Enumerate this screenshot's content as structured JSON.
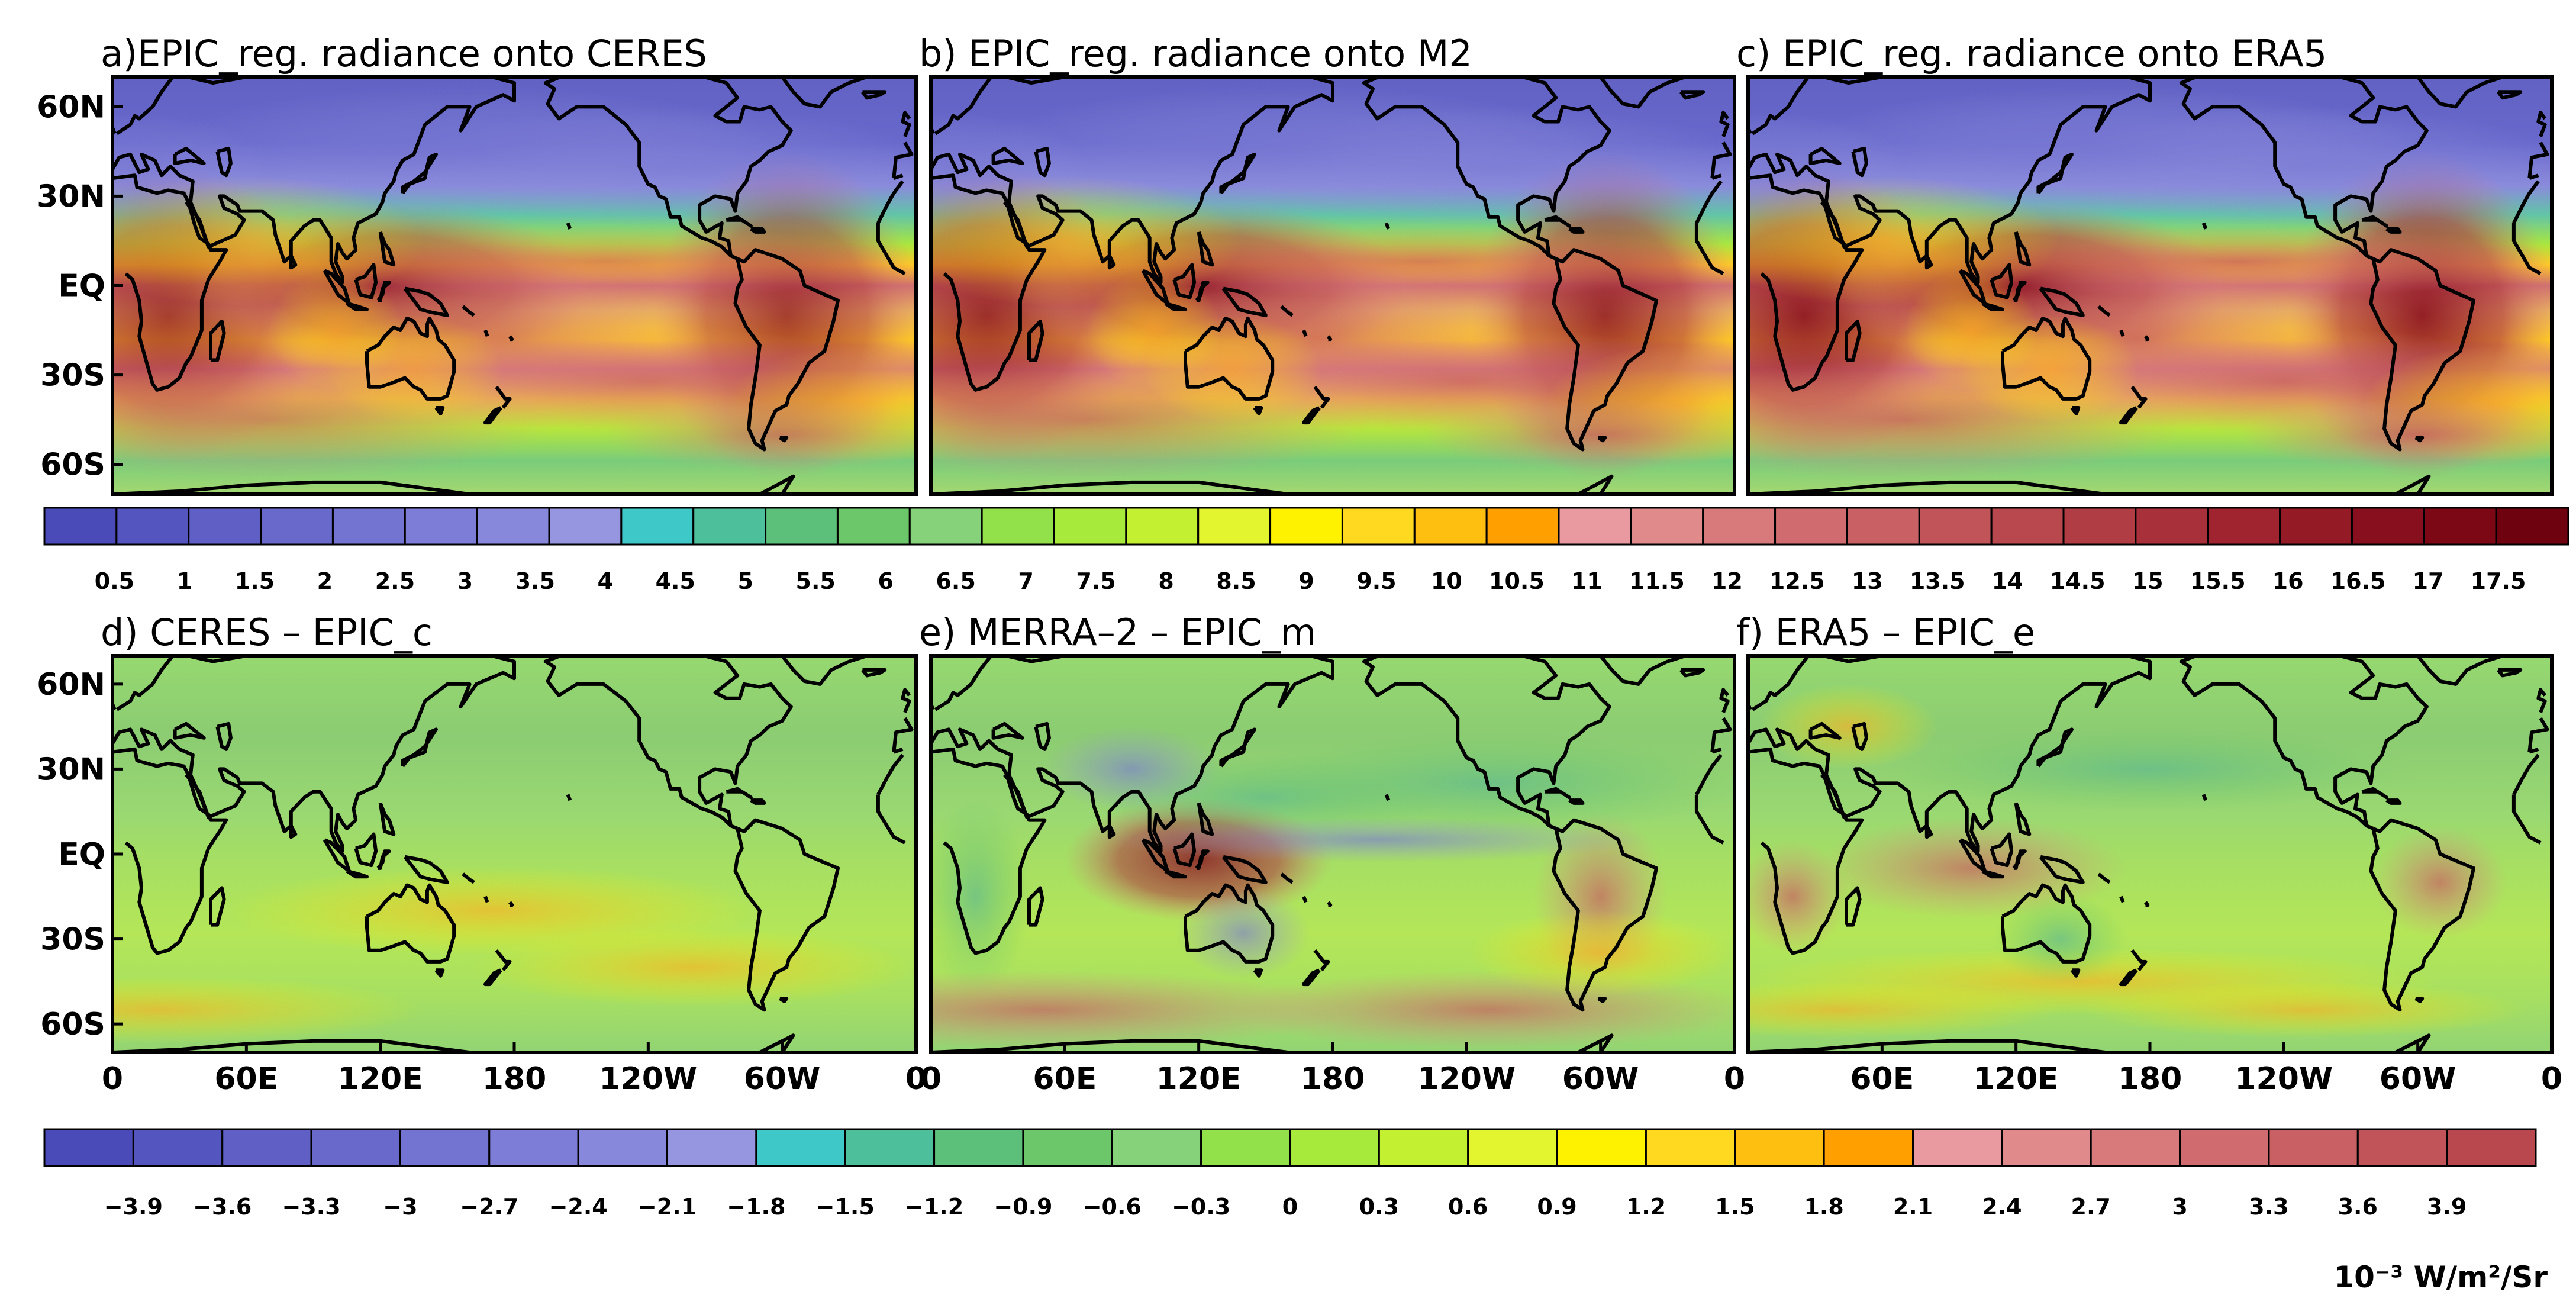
{
  "figure": {
    "panels": [
      {
        "id": "a",
        "title": "a)EPIC_reg. radiance onto CERES",
        "field_type": "absolute",
        "variant": 0
      },
      {
        "id": "b",
        "title": "b) EPIC_reg. radiance onto M2",
        "field_type": "absolute",
        "variant": 1
      },
      {
        "id": "c",
        "title": "c) EPIC_reg. radiance onto ERA5",
        "field_type": "absolute",
        "variant": 2
      },
      {
        "id": "d",
        "title": "d) CERES – EPIC_c",
        "field_type": "difference",
        "variant": 0
      },
      {
        "id": "e",
        "title": "e) MERRA–2 – EPIC_m",
        "field_type": "difference",
        "variant": 1
      },
      {
        "id": "f",
        "title": "f) ERA5 – EPIC_e",
        "field_type": "difference",
        "variant": 2
      }
    ],
    "lat_ticks": [
      "60N",
      "30N",
      "EQ",
      "30S",
      "60S"
    ],
    "lat_tick_values": [
      60,
      30,
      0,
      -30,
      -60
    ],
    "lat_range": [
      -70,
      70
    ],
    "lon_ticks": [
      "0",
      "60E",
      "120E",
      "180",
      "120W",
      "60W",
      "0"
    ],
    "lon_ticks_left_panel": [
      "0",
      "60E",
      "120E",
      "180",
      "120W",
      "60W",
      "0"
    ],
    "lon_ticks_mid_panel": [
      "0",
      "60E",
      "120E",
      "180",
      "120W",
      "60W",
      "0"
    ],
    "lon_ticks_right_panel": [
      "60E",
      "120E",
      "180",
      "120W",
      "60W",
      "0"
    ],
    "lon_range": [
      0,
      360
    ],
    "colorbar_top": {
      "labels": [
        "0.5",
        "1",
        "1.5",
        "2",
        "2.5",
        "3",
        "3.5",
        "4",
        "4.5",
        "5",
        "5.5",
        "6",
        "6.5",
        "7",
        "7.5",
        "8",
        "8.5",
        "9",
        "9.5",
        "10",
        "10.5",
        "11",
        "11.5",
        "12",
        "12.5",
        "13",
        "13.5",
        "14",
        "14.5",
        "15",
        "15.5",
        "16",
        "16.5",
        "17",
        "17.5"
      ],
      "range": [
        0,
        18
      ],
      "colors": [
        "#4a4ab8",
        "#5555c0",
        "#5f5fc6",
        "#6969cc",
        "#7373d2",
        "#7d7dd8",
        "#8787dc",
        "#9696e0",
        "#3ec8c8",
        "#4dbf9a",
        "#5cc07a",
        "#6cc76a",
        "#86d27a",
        "#92e14a",
        "#a8ea3c",
        "#c4f032",
        "#e2f52e",
        "#fff200",
        "#ffd820",
        "#ffbf10",
        "#ffa000",
        "#e89aa0",
        "#e08a8c",
        "#d87a7c",
        "#d06c70",
        "#c86064",
        "#c05458",
        "#b8484e",
        "#b03c44",
        "#a8303a",
        "#a02430",
        "#941a26",
        "#88101e",
        "#7c0816",
        "#6e020e"
      ]
    },
    "colorbar_bottom": {
      "labels": [
        "−3.9",
        "−3.6",
        "−3.3",
        "−3",
        "−2.7",
        "−2.4",
        "−2.1",
        "−1.8",
        "−1.5",
        "−1.2",
        "−0.9",
        "−0.6",
        "−0.3",
        "0",
        "0.3",
        "0.6",
        "0.9",
        "1.2",
        "1.5",
        "1.8",
        "2.1",
        "2.4",
        "2.7",
        "3",
        "3.3",
        "3.6",
        "3.9"
      ],
      "range": [
        -4.2,
        4.2
      ],
      "colors": [
        "#4a4ab8",
        "#5555c0",
        "#5f5fc6",
        "#6969cc",
        "#7373d2",
        "#7d7dd8",
        "#8787dc",
        "#9696e0",
        "#3ec8c8",
        "#4dbf9a",
        "#5cc07a",
        "#6cc76a",
        "#86d27a",
        "#92e14a",
        "#a8ea3c",
        "#c4f032",
        "#e2f52e",
        "#fff200",
        "#ffd820",
        "#ffbf10",
        "#ffa000",
        "#e89aa0",
        "#e08a8c",
        "#d87a7c",
        "#d06c70",
        "#c86064",
        "#c05458",
        "#b8484e"
      ]
    },
    "units": "10⁻³ W/m²/Sr"
  }
}
